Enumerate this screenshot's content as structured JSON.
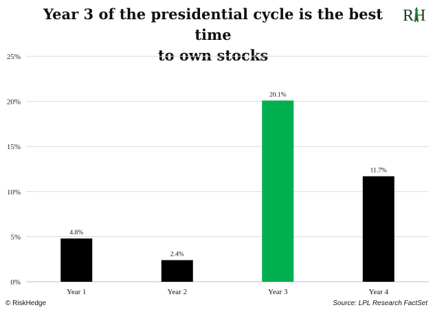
{
  "title_line1": "Year 3 of the presidential cycle is the best time",
  "title_line2": "to own stocks",
  "logo_text": "RH",
  "footer": {
    "copyright": "© RiskHedge",
    "source": "Source: LPL Research FactSet"
  },
  "colors": {
    "default_bar": "#000000",
    "highlight_bar": "#00b050",
    "grid": "#d9d9d9",
    "logo_green": "#1e7a3c"
  },
  "chart_data": {
    "type": "bar",
    "categories": [
      "Year 1",
      "Year 2",
      "Year 3",
      "Year 4"
    ],
    "values": [
      4.8,
      2.4,
      20.1,
      11.7
    ],
    "data_labels": [
      "4.8%",
      "2.4%",
      "20.1%",
      "11.7%"
    ],
    "highlight_index": 2,
    "title": "Year 3 of the presidential cycle is the best time to own stocks",
    "xlabel": "",
    "ylabel": "",
    "ylim": [
      0,
      25
    ],
    "yticks": [
      0,
      5,
      10,
      15,
      20,
      25
    ],
    "ytick_labels": [
      "0%",
      "5%",
      "10%",
      "15%",
      "20%",
      "25%"
    ],
    "grid": true,
    "legend": "none"
  }
}
